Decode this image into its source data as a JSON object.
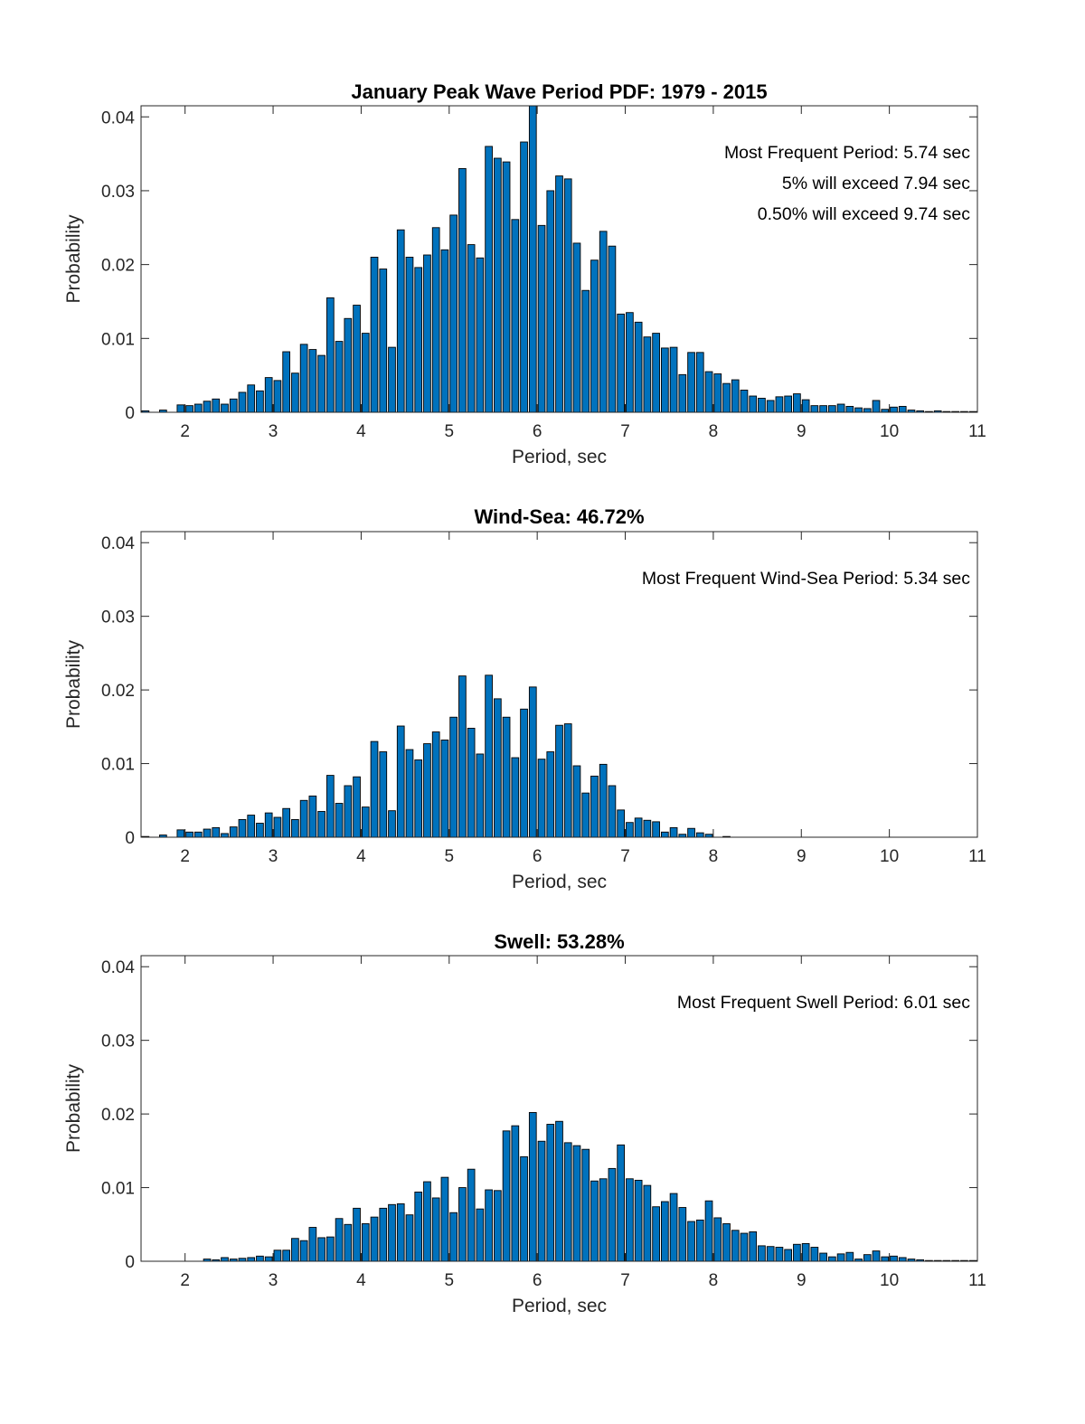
{
  "chart_data": [
    {
      "type": "bar",
      "title": "January Peak Wave Period PDF: 1979 - 2015",
      "xlabel": "Period, sec",
      "ylabel": "Probability",
      "xlim": [
        1.5,
        11
      ],
      "ylim": [
        0,
        0.0415
      ],
      "xticks": [
        "2",
        "3",
        "4",
        "5",
        "6",
        "7",
        "8",
        "9",
        "10",
        "11"
      ],
      "yticks": [
        "0",
        "0.01",
        "0.02",
        "0.03",
        "0.04"
      ],
      "annotations": [
        "Most Frequent Period: 5.74 sec",
        "5% will exceed 7.94 sec",
        "0.50% will exceed 9.74 sec"
      ],
      "bar_color": "#0072BD",
      "x_start": 1.55,
      "x_step": 0.1,
      "values": [
        0.0002,
        0,
        0.0003,
        0,
        0.001,
        0.0009,
        0.0011,
        0.0015,
        0.0018,
        0.0011,
        0.0018,
        0.0027,
        0.0037,
        0.0029,
        0.0047,
        0.0043,
        0.0082,
        0.0053,
        0.0092,
        0.0085,
        0.0077,
        0.0155,
        0.0096,
        0.0127,
        0.0145,
        0.0107,
        0.021,
        0.0194,
        0.0088,
        0.0247,
        0.021,
        0.0196,
        0.0213,
        0.025,
        0.022,
        0.0267,
        0.033,
        0.0227,
        0.0209,
        0.036,
        0.0344,
        0.0339,
        0.0261,
        0.0366,
        0.0415,
        0.0253,
        0.03,
        0.032,
        0.0316,
        0.0229,
        0.0165,
        0.0206,
        0.0245,
        0.0225,
        0.0133,
        0.0135,
        0.0122,
        0.0102,
        0.0107,
        0.0087,
        0.0088,
        0.0051,
        0.0081,
        0.0081,
        0.0055,
        0.0052,
        0.0039,
        0.0044,
        0.003,
        0.0022,
        0.0019,
        0.0016,
        0.0021,
        0.0022,
        0.0025,
        0.0017,
        0.0009,
        0.0009,
        0.0009,
        0.0011,
        0.0008,
        0.0006,
        0.0005,
        0.0016,
        0.0004,
        0.0007,
        0.0008,
        0.0003,
        0.0002,
        0.0001,
        0.0002,
        0.0001,
        0.0001,
        0.0001,
        0.0001
      ]
    },
    {
      "type": "bar",
      "title": "Wind-Sea: 46.72%",
      "xlabel": "Period, sec",
      "ylabel": "Probability",
      "xlim": [
        1.5,
        11
      ],
      "ylim": [
        0,
        0.0415
      ],
      "xticks": [
        "2",
        "3",
        "4",
        "5",
        "6",
        "7",
        "8",
        "9",
        "10",
        "11"
      ],
      "yticks": [
        "0",
        "0.01",
        "0.02",
        "0.03",
        "0.04"
      ],
      "annotations": [
        "Most Frequent Wind-Sea Period: 5.34 sec"
      ],
      "bar_color": "#0072BD",
      "x_start": 1.55,
      "x_step": 0.1,
      "values": [
        0.0001,
        0,
        0.0003,
        0,
        0.001,
        0.0007,
        0.0007,
        0.0011,
        0.0013,
        0.0005,
        0.0014,
        0.0024,
        0.003,
        0.0019,
        0.0033,
        0.0027,
        0.0039,
        0.0024,
        0.005,
        0.0056,
        0.0035,
        0.0084,
        0.0046,
        0.007,
        0.0082,
        0.0041,
        0.013,
        0.0116,
        0.0036,
        0.0151,
        0.0119,
        0.0105,
        0.0127,
        0.0143,
        0.0132,
        0.0163,
        0.0219,
        0.0148,
        0.0113,
        0.022,
        0.0188,
        0.0163,
        0.0108,
        0.0174,
        0.0204,
        0.0106,
        0.0116,
        0.0152,
        0.0154,
        0.0097,
        0.006,
        0.0083,
        0.0099,
        0.007,
        0.0037,
        0.002,
        0.0026,
        0.0023,
        0.0021,
        0.0007,
        0.0013,
        0.0004,
        0.0012,
        0.0006,
        0.0004,
        0,
        0.0001,
        0,
        0,
        0,
        0,
        0,
        0,
        0,
        0,
        0,
        0,
        0,
        0,
        0,
        0,
        0,
        0,
        0,
        0,
        0,
        0,
        0,
        0,
        0,
        0,
        0,
        0,
        0,
        0
      ]
    },
    {
      "type": "bar",
      "title": "Swell: 53.28%",
      "xlabel": "Period, sec",
      "ylabel": "Probability",
      "xlim": [
        1.5,
        11
      ],
      "ylim": [
        0,
        0.0415
      ],
      "xticks": [
        "2",
        "3",
        "4",
        "5",
        "6",
        "7",
        "8",
        "9",
        "10",
        "11"
      ],
      "yticks": [
        "0",
        "0.01",
        "0.02",
        "0.03",
        "0.04"
      ],
      "annotations": [
        "Most Frequent Swell Period: 6.01 sec"
      ],
      "bar_color": "#0072BD",
      "x_start": 1.55,
      "x_step": 0.1,
      "values": [
        0,
        0,
        0,
        0,
        0,
        0,
        0,
        0.0003,
        0.0002,
        0.0005,
        0.0003,
        0.0004,
        0.0005,
        0.0007,
        0.0006,
        0.0015,
        0.0015,
        0.0031,
        0.0028,
        0.0046,
        0.0032,
        0.0033,
        0.0058,
        0.005,
        0.0072,
        0.0051,
        0.006,
        0.0072,
        0.0077,
        0.0078,
        0.0063,
        0.0094,
        0.0108,
        0.0086,
        0.0114,
        0.0066,
        0.01,
        0.0125,
        0.0071,
        0.0097,
        0.0096,
        0.0177,
        0.0184,
        0.0142,
        0.0202,
        0.0163,
        0.0186,
        0.019,
        0.0161,
        0.0157,
        0.0152,
        0.0109,
        0.0112,
        0.0126,
        0.0158,
        0.0112,
        0.011,
        0.0103,
        0.0074,
        0.0081,
        0.0092,
        0.0073,
        0.0054,
        0.0056,
        0.0082,
        0.0059,
        0.0051,
        0.0042,
        0.0038,
        0.004,
        0.0021,
        0.002,
        0.0019,
        0.0016,
        0.0023,
        0.0024,
        0.0019,
        0.0011,
        0.0006,
        0.001,
        0.0012,
        0.0003,
        0.0009,
        0.0014,
        0.0006,
        0.0007,
        0.0005,
        0.0003,
        0.0002,
        0.0001,
        0.0001,
        0.0001,
        0.0001,
        0.0001,
        0.0001
      ]
    }
  ]
}
